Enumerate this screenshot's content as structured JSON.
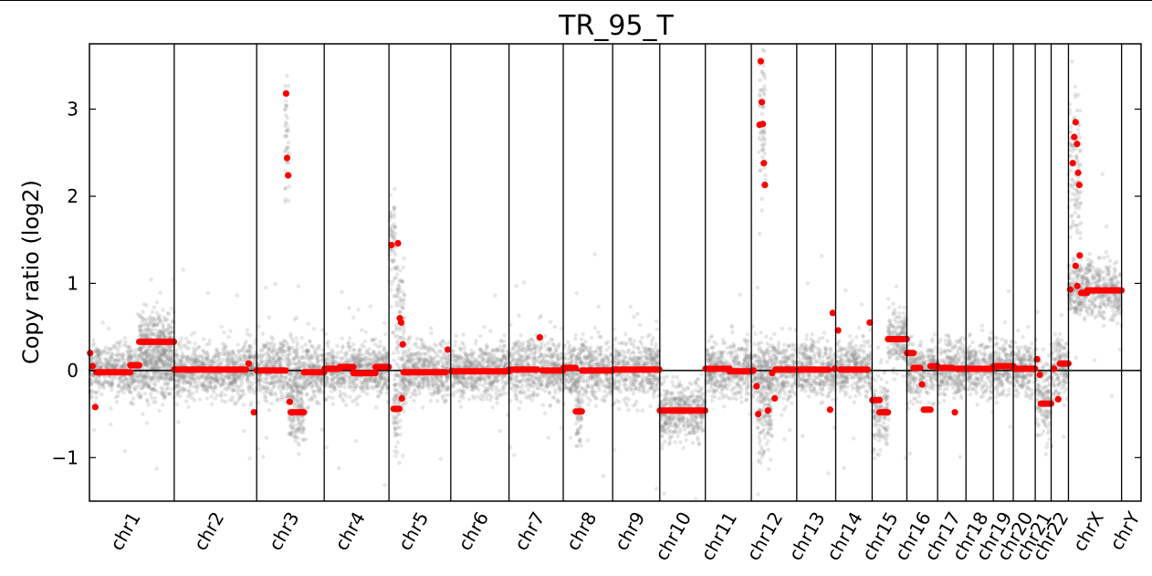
{
  "chart_data": {
    "type": "scatter",
    "title": "TR_95_T",
    "xlabel": "",
    "ylabel": "Copy ratio (log2)",
    "ylim": [
      -1.5,
      3.75
    ],
    "yticks": [
      {
        "value": 3,
        "label": "3"
      },
      {
        "value": 2,
        "label": "2"
      },
      {
        "value": 1,
        "label": "1"
      },
      {
        "value": 0,
        "label": "0"
      },
      {
        "value": -1,
        "label": "−1"
      }
    ],
    "grid": false,
    "colors": {
      "bins": "#8c8c8c",
      "segments": "#ff0000",
      "axes": "#000000"
    },
    "chromosomes": [
      {
        "name": "chr1",
        "start": 0,
        "end": 248.9
      },
      {
        "name": "chr2",
        "start": 248.9,
        "end": 491.1
      },
      {
        "name": "chr3",
        "start": 491.1,
        "end": 689.4
      },
      {
        "name": "chr4",
        "start": 689.4,
        "end": 879.6
      },
      {
        "name": "chr5",
        "start": 879.6,
        "end": 1061.1
      },
      {
        "name": "chr6",
        "start": 1061.1,
        "end": 1232.1
      },
      {
        "name": "chr7",
        "start": 1232.1,
        "end": 1391.4
      },
      {
        "name": "chr8",
        "start": 1391.4,
        "end": 1536.5
      },
      {
        "name": "chr9",
        "start": 1536.5,
        "end": 1674.9
      },
      {
        "name": "chr10",
        "start": 1674.9,
        "end": 1808.7
      },
      {
        "name": "chr11",
        "start": 1808.7,
        "end": 1943.8
      },
      {
        "name": "chr12",
        "start": 1943.8,
        "end": 2077.1
      },
      {
        "name": "chr13",
        "start": 2077.1,
        "end": 2191.5
      },
      {
        "name": "chr14",
        "start": 2191.5,
        "end": 2298.5
      },
      {
        "name": "chr15",
        "start": 2298.5,
        "end": 2400.5
      },
      {
        "name": "chr16",
        "start": 2400.5,
        "end": 2490.8
      },
      {
        "name": "chr17",
        "start": 2490.8,
        "end": 2574.1
      },
      {
        "name": "chr18",
        "start": 2574.1,
        "end": 2654.4
      },
      {
        "name": "chr19",
        "start": 2654.4,
        "end": 2713.0
      },
      {
        "name": "chr20",
        "start": 2713.0,
        "end": 2777.5
      },
      {
        "name": "chr21",
        "start": 2777.5,
        "end": 2824.2
      },
      {
        "name": "chr22",
        "start": 2824.2,
        "end": 2875.0
      },
      {
        "name": "chrX",
        "start": 2875.0,
        "end": 3031.0
      },
      {
        "name": "chrY",
        "start": 3031.0,
        "end": 3088.2
      }
    ],
    "segments": [
      {
        "chrom": "chr1",
        "start": 0,
        "end": 4,
        "log2": 0.2
      },
      {
        "chrom": "chr1",
        "start": 4,
        "end": 14,
        "log2": 0.05
      },
      {
        "chrom": "chr1",
        "start": 14,
        "end": 20,
        "log2": -0.42
      },
      {
        "chrom": "chr1",
        "start": 20,
        "end": 120,
        "log2": -0.02
      },
      {
        "chrom": "chr1",
        "start": 120,
        "end": 146,
        "log2": 0.06
      },
      {
        "chrom": "chr1",
        "start": 146,
        "end": 248,
        "log2": 0.33
      },
      {
        "chrom": "chr2",
        "start": 249,
        "end": 460,
        "log2": 0.01
      },
      {
        "chrom": "chr2",
        "start": 460,
        "end": 475,
        "log2": 0.08
      },
      {
        "chrom": "chr2",
        "start": 475,
        "end": 491,
        "log2": -0.48
      },
      {
        "chrom": "chr3",
        "start": 491,
        "end": 576,
        "log2": 0.0
      },
      {
        "chrom": "chr3",
        "start": 576,
        "end": 579,
        "log2": 3.18
      },
      {
        "chrom": "chr3",
        "start": 579,
        "end": 582,
        "log2": 2.44
      },
      {
        "chrom": "chr3",
        "start": 582,
        "end": 585,
        "log2": 2.24
      },
      {
        "chrom": "chr3",
        "start": 585,
        "end": 591,
        "log2": -0.36
      },
      {
        "chrom": "chr3",
        "start": 591,
        "end": 630,
        "log2": -0.48
      },
      {
        "chrom": "chr3",
        "start": 630,
        "end": 689,
        "log2": -0.02
      },
      {
        "chrom": "chr4",
        "start": 690,
        "end": 735,
        "log2": 0.02
      },
      {
        "chrom": "chr4",
        "start": 735,
        "end": 775,
        "log2": 0.04
      },
      {
        "chrom": "chr4",
        "start": 775,
        "end": 840,
        "log2": -0.03
      },
      {
        "chrom": "chr4",
        "start": 840,
        "end": 879,
        "log2": 0.04
      },
      {
        "chrom": "chr5",
        "start": 880,
        "end": 893,
        "log2": 1.44
      },
      {
        "chrom": "chr5",
        "start": 893,
        "end": 910,
        "log2": -0.44
      },
      {
        "chrom": "chr5",
        "start": 902,
        "end": 910,
        "log2": 1.46
      },
      {
        "chrom": "chr5",
        "start": 910,
        "end": 913,
        "log2": 0.6
      },
      {
        "chrom": "chr5",
        "start": 913,
        "end": 918,
        "log2": 0.55
      },
      {
        "chrom": "chr5",
        "start": 918,
        "end": 922,
        "log2": 0.3
      },
      {
        "chrom": "chr5",
        "start": 915,
        "end": 920,
        "log2": -0.32
      },
      {
        "chrom": "chr5",
        "start": 922,
        "end": 1045,
        "log2": -0.02
      },
      {
        "chrom": "chr5",
        "start": 1045,
        "end": 1060,
        "log2": 0.24
      },
      {
        "chrom": "chr6",
        "start": 1062,
        "end": 1232,
        "log2": -0.01
      },
      {
        "chrom": "chr7",
        "start": 1232,
        "end": 1315,
        "log2": 0.01
      },
      {
        "chrom": "chr7",
        "start": 1315,
        "end": 1330,
        "log2": 0.38
      },
      {
        "chrom": "chr7",
        "start": 1330,
        "end": 1391,
        "log2": 0.0
      },
      {
        "chrom": "chr8",
        "start": 1392,
        "end": 1428,
        "log2": 0.03
      },
      {
        "chrom": "chr8",
        "start": 1428,
        "end": 1446,
        "log2": -0.47
      },
      {
        "chrom": "chr8",
        "start": 1446,
        "end": 1536,
        "log2": 0.0
      },
      {
        "chrom": "chr9",
        "start": 1537,
        "end": 1674,
        "log2": 0.01
      },
      {
        "chrom": "chr10",
        "start": 1675,
        "end": 1808,
        "log2": -0.46
      },
      {
        "chrom": "chr11",
        "start": 1809,
        "end": 1880,
        "log2": 0.02
      },
      {
        "chrom": "chr11",
        "start": 1880,
        "end": 1943,
        "log2": -0.01
      },
      {
        "chrom": "chr12",
        "start": 1944,
        "end": 1956,
        "log2": 0.0
      },
      {
        "chrom": "chr12",
        "start": 1956,
        "end": 1962,
        "log2": -0.18
      },
      {
        "chrom": "chr12",
        "start": 1962,
        "end": 1966,
        "log2": -0.5
      },
      {
        "chrom": "chr12",
        "start": 1966,
        "end": 1970,
        "log2": 2.82
      },
      {
        "chrom": "chr12",
        "start": 1970,
        "end": 1973,
        "log2": 3.55
      },
      {
        "chrom": "chr12",
        "start": 1973,
        "end": 1976,
        "log2": 3.08
      },
      {
        "chrom": "chr12",
        "start": 1976,
        "end": 1979,
        "log2": 2.83
      },
      {
        "chrom": "chr12",
        "start": 1979,
        "end": 1982,
        "log2": 2.38
      },
      {
        "chrom": "chr12",
        "start": 1982,
        "end": 1985,
        "log2": 2.13
      },
      {
        "chrom": "chr12",
        "start": 1985,
        "end": 2000,
        "log2": -0.46
      },
      {
        "chrom": "chr12",
        "start": 2000,
        "end": 2010,
        "log2": -0.03
      },
      {
        "chrom": "chr12",
        "start": 2010,
        "end": 2015,
        "log2": -0.32
      },
      {
        "chrom": "chr12",
        "start": 2015,
        "end": 2077,
        "log2": 0.01
      },
      {
        "chrom": "chr13",
        "start": 2078,
        "end": 2170,
        "log2": 0.01
      },
      {
        "chrom": "chr13",
        "start": 2170,
        "end": 2180,
        "log2": -0.45
      },
      {
        "chrom": "chr13",
        "start": 2180,
        "end": 2186,
        "log2": 0.66
      },
      {
        "chrom": "chr13",
        "start": 2186,
        "end": 2191,
        "log2": 0.02
      },
      {
        "chrom": "chr14",
        "start": 2192,
        "end": 2205,
        "log2": 0.46
      },
      {
        "chrom": "chr14",
        "start": 2205,
        "end": 2285,
        "log2": 0.01
      },
      {
        "chrom": "chr14",
        "start": 2285,
        "end": 2298,
        "log2": 0.55
      },
      {
        "chrom": "chr15",
        "start": 2299,
        "end": 2320,
        "log2": -0.34
      },
      {
        "chrom": "chr15",
        "start": 2320,
        "end": 2345,
        "log2": -0.48
      },
      {
        "chrom": "chr15",
        "start": 2345,
        "end": 2400,
        "log2": 0.36
      },
      {
        "chrom": "chr16",
        "start": 2401,
        "end": 2420,
        "log2": 0.2
      },
      {
        "chrom": "chr16",
        "start": 2420,
        "end": 2440,
        "log2": 0.03
      },
      {
        "chrom": "chr16",
        "start": 2440,
        "end": 2450,
        "log2": -0.16
      },
      {
        "chrom": "chr16",
        "start": 2450,
        "end": 2470,
        "log2": -0.45
      },
      {
        "chrom": "chr16",
        "start": 2470,
        "end": 2490,
        "log2": 0.05
      },
      {
        "chrom": "chr17",
        "start": 2491,
        "end": 2535,
        "log2": 0.03
      },
      {
        "chrom": "chr17",
        "start": 2535,
        "end": 2548,
        "log2": -0.48
      },
      {
        "chrom": "chr17",
        "start": 2548,
        "end": 2574,
        "log2": 0.02
      },
      {
        "chrom": "chr18",
        "start": 2575,
        "end": 2654,
        "log2": 0.02
      },
      {
        "chrom": "chr19",
        "start": 2655,
        "end": 2713,
        "log2": 0.05
      },
      {
        "chrom": "chr20",
        "start": 2714,
        "end": 2777,
        "log2": 0.02
      },
      {
        "chrom": "chr21",
        "start": 2778,
        "end": 2788,
        "log2": 0.13
      },
      {
        "chrom": "chr21",
        "start": 2788,
        "end": 2794,
        "log2": -0.05
      },
      {
        "chrom": "chr21",
        "start": 2794,
        "end": 2824,
        "log2": -0.38
      },
      {
        "chrom": "chr22",
        "start": 2825,
        "end": 2840,
        "log2": 0.02
      },
      {
        "chrom": "chr22",
        "start": 2840,
        "end": 2850,
        "log2": -0.33
      },
      {
        "chrom": "chr22",
        "start": 2850,
        "end": 2875,
        "log2": 0.08
      },
      {
        "chrom": "chrX",
        "start": 2875,
        "end": 2885,
        "log2": 0.93
      },
      {
        "chrom": "chrX",
        "start": 2885,
        "end": 2890,
        "log2": 2.38
      },
      {
        "chrom": "chrX",
        "start": 2890,
        "end": 2894,
        "log2": 2.68
      },
      {
        "chrom": "chrX",
        "start": 2894,
        "end": 2898,
        "log2": 2.85
      },
      {
        "chrom": "chrX",
        "start": 2898,
        "end": 2902,
        "log2": 2.6
      },
      {
        "chrom": "chrX",
        "start": 2902,
        "end": 2905,
        "log2": 2.27
      },
      {
        "chrom": "chrX",
        "start": 2905,
        "end": 2909,
        "log2": 2.13
      },
      {
        "chrom": "chrX",
        "start": 2894,
        "end": 2898,
        "log2": 1.2
      },
      {
        "chrom": "chrX",
        "start": 2898,
        "end": 2904,
        "log2": 0.97
      },
      {
        "chrom": "chrX",
        "start": 2904,
        "end": 2912,
        "log2": 1.32
      },
      {
        "chrom": "chrX",
        "start": 2912,
        "end": 2930,
        "log2": 0.89
      },
      {
        "chrom": "chrX",
        "start": 2930,
        "end": 3031,
        "log2": 0.92
      }
    ],
    "noise_regions": [
      {
        "start": 0,
        "end": 248,
        "level": 0.0,
        "spread": 0.15
      },
      {
        "start": 146,
        "end": 248,
        "level": 0.33,
        "spread": 0.16
      },
      {
        "start": 249,
        "end": 491,
        "level": 0.0,
        "spread": 0.16
      },
      {
        "start": 491,
        "end": 689,
        "level": 0.0,
        "spread": 0.17
      },
      {
        "start": 585,
        "end": 630,
        "level": -0.48,
        "spread": 0.2
      },
      {
        "start": 573,
        "end": 586,
        "level": 2.5,
        "spread": 0.4
      },
      {
        "start": 690,
        "end": 879,
        "level": 0.01,
        "spread": 0.15
      },
      {
        "start": 880,
        "end": 900,
        "level": 1.4,
        "spread": 0.35
      },
      {
        "start": 893,
        "end": 925,
        "level": -0.3,
        "spread": 0.3
      },
      {
        "start": 900,
        "end": 925,
        "level": 0.6,
        "spread": 0.45
      },
      {
        "start": 922,
        "end": 1060,
        "level": 0.0,
        "spread": 0.16
      },
      {
        "start": 1062,
        "end": 1232,
        "level": 0.0,
        "spread": 0.16
      },
      {
        "start": 1232,
        "end": 1391,
        "level": 0.02,
        "spread": 0.17
      },
      {
        "start": 1392,
        "end": 1536,
        "level": 0.0,
        "spread": 0.17
      },
      {
        "start": 1428,
        "end": 1446,
        "level": -0.5,
        "spread": 0.22
      },
      {
        "start": 1537,
        "end": 1674,
        "level": 0.01,
        "spread": 0.17
      },
      {
        "start": 1675,
        "end": 1808,
        "level": -0.46,
        "spread": 0.17
      },
      {
        "start": 1809,
        "end": 1943,
        "level": 0.01,
        "spread": 0.16
      },
      {
        "start": 1944,
        "end": 2077,
        "level": 0.0,
        "spread": 0.17
      },
      {
        "start": 1962,
        "end": 2005,
        "level": -0.5,
        "spread": 0.25
      },
      {
        "start": 1966,
        "end": 1986,
        "level": 2.8,
        "spread": 0.45
      },
      {
        "start": 2078,
        "end": 2191,
        "level": 0.02,
        "spread": 0.16
      },
      {
        "start": 2192,
        "end": 2298,
        "level": 0.03,
        "spread": 0.16
      },
      {
        "start": 2299,
        "end": 2345,
        "level": -0.48,
        "spread": 0.2
      },
      {
        "start": 2345,
        "end": 2400,
        "level": 0.36,
        "spread": 0.17
      },
      {
        "start": 2401,
        "end": 2490,
        "level": 0.0,
        "spread": 0.17
      },
      {
        "start": 2491,
        "end": 2574,
        "level": 0.02,
        "spread": 0.17
      },
      {
        "start": 2575,
        "end": 2654,
        "level": 0.03,
        "spread": 0.16
      },
      {
        "start": 2655,
        "end": 2713,
        "level": 0.05,
        "spread": 0.16
      },
      {
        "start": 2714,
        "end": 2777,
        "level": 0.02,
        "spread": 0.17
      },
      {
        "start": 2778,
        "end": 2824,
        "level": -0.3,
        "spread": 0.22
      },
      {
        "start": 2825,
        "end": 2875,
        "level": 0.03,
        "spread": 0.17
      },
      {
        "start": 2875,
        "end": 2912,
        "level": 2.2,
        "spread": 0.5
      },
      {
        "start": 2875,
        "end": 3031,
        "level": 0.92,
        "spread": 0.17
      }
    ]
  }
}
